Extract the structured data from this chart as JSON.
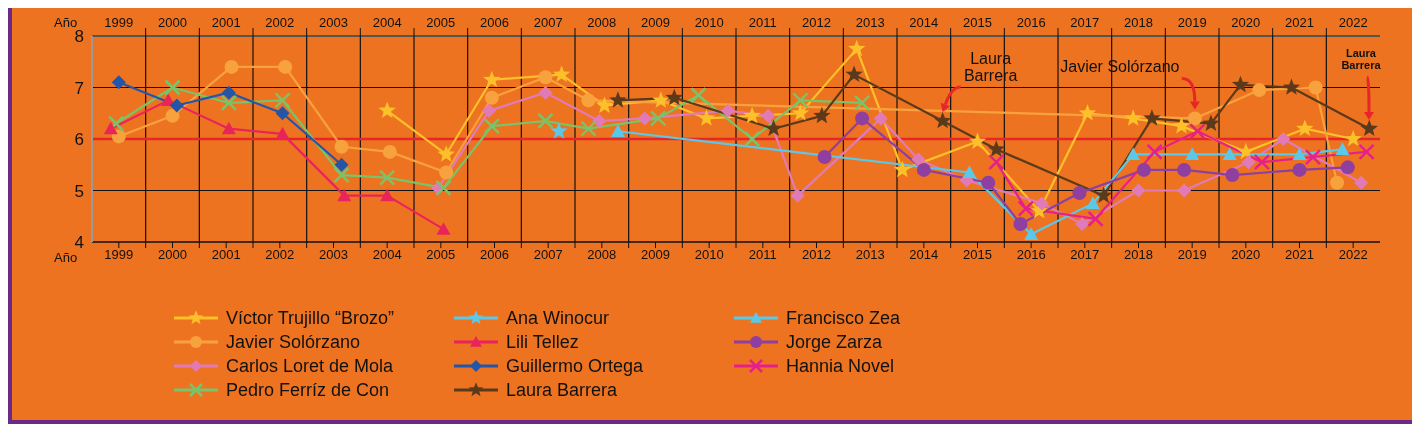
{
  "chart_data": {
    "type": "line",
    "xlabel": "Año",
    "x2label": "Año",
    "xlim": [
      1998.5,
      2022.5
    ],
    "x2lim": [
      1998.5,
      2022.5
    ],
    "xticks": [
      1999,
      {
        "value": 1999.5,
        "label": null
      },
      2000,
      {
        "value": 2000.5,
        "label": null
      },
      2001,
      {
        "value": 2001.5,
        "label": null
      },
      2002,
      {
        "value": 2002.5,
        "label": null
      },
      2003,
      {
        "value": 2003.5,
        "label": null
      },
      2004,
      {
        "value": 2004.5,
        "label": null
      },
      2005,
      {
        "value": 2005.5,
        "label": null
      },
      2006,
      {
        "value": 2006.5,
        "label": null
      },
      2007,
      {
        "value": 2007.5,
        "label": null
      },
      2008,
      {
        "value": 2008.5,
        "label": null
      },
      2009,
      {
        "value": 2009.5,
        "label": null
      },
      2010,
      {
        "value": 2010.5,
        "label": null
      },
      2011,
      {
        "value": 2011.5,
        "label": null
      },
      2012,
      {
        "value": 2012.5,
        "label": null
      },
      2013,
      {
        "value": 2013.5,
        "label": null
      },
      2014,
      {
        "value": 2014.5,
        "label": null
      },
      2015,
      {
        "value": 2015.5,
        "label": null
      },
      2016,
      {
        "value": 2016.5,
        "label": null
      },
      2017,
      {
        "value": 2017.5,
        "label": null
      },
      2018,
      {
        "value": 2018.5,
        "label": null
      },
      2019,
      {
        "value": 2019.5,
        "label": null
      },
      2020,
      {
        "value": 2020.5,
        "label": null
      },
      2021,
      {
        "value": 2021.5,
        "label": null
      },
      2022
    ],
    "x2ticks": [
      1999,
      {
        "value": 1999.5,
        "label": null
      },
      2000,
      {
        "value": 2000.5,
        "label": null
      },
      2001,
      {
        "value": 2001.5,
        "label": null
      },
      2002,
      {
        "value": 2002.5,
        "label": null
      },
      2003,
      {
        "value": 2003.5,
        "label": null
      },
      2004,
      {
        "value": 2004.5,
        "label": null
      },
      2005,
      {
        "value": 2005.5,
        "label": null
      },
      2006,
      {
        "value": 2006.5,
        "label": null
      },
      2007,
      {
        "value": 2007.5,
        "label": null
      },
      2008,
      {
        "value": 2008.5,
        "label": null
      },
      2009,
      {
        "value": 2009.5,
        "label": null
      },
      2010,
      {
        "value": 2010.5,
        "label": null
      },
      2011,
      {
        "value": 2011.5,
        "label": null
      },
      2012,
      {
        "value": 2012.5,
        "label": null
      },
      2013,
      {
        "value": 2013.5,
        "label": null
      },
      2014,
      {
        "value": 2014.5,
        "label": null
      },
      2015,
      {
        "value": 2015.5,
        "label": null
      },
      2016,
      {
        "value": 2016.5,
        "label": null
      },
      2017,
      {
        "value": 2017.5,
        "label": null
      },
      2018,
      {
        "value": 2018.5,
        "label": null
      },
      2019,
      {
        "value": 2019.5,
        "label": null
      },
      2020,
      {
        "value": 2020.5,
        "label": null
      },
      2021,
      {
        "value": 2021.5,
        "label": null
      },
      2022
    ],
    "ylim": [
      4,
      8
    ],
    "yticks": [
      4,
      5,
      6,
      7,
      8
    ],
    "grid": true,
    "legend": "bottom",
    "ref_lines": [
      {
        "axis": "y",
        "value": 6,
        "color": "#e8262a"
      }
    ],
    "annotations": [
      {
        "text": "Laura Barrera",
        "x": 2014.35,
        "y": 6.35
      },
      {
        "text": "Javier Solórzano",
        "x": 2019.05,
        "y": 6.4
      },
      "Laura Barrera"
    ],
    "series": [
      {
        "name": "Víctor Trujillo “Brozo”",
        "color": "#fcc02a",
        "marker": "star",
        "x": [
          2004.0,
          2005.1,
          2005.95,
          2007.25,
          2008.05,
          2009.1,
          2009.95,
          2010.8,
          2011.7,
          2012.75,
          2013.6,
          2015.0,
          2016.15,
          2017.05,
          2017.9,
          2018.8,
          2020.0,
          2021.1,
          2022.0
        ],
        "values": [
          6.55,
          5.7,
          7.15,
          7.25,
          6.65,
          6.75,
          6.4,
          6.45,
          6.5,
          7.75,
          5.4,
          5.95,
          4.6,
          6.5,
          6.4,
          6.25,
          5.75,
          6.2,
          6.0
        ]
      },
      {
        "name": "Javier Solórzano",
        "color": "#f8a23e",
        "marker": "circle",
        "x": [
          1999.0,
          2000.0,
          2001.1,
          2002.1,
          2003.15,
          2004.05,
          2005.1,
          2005.95,
          2006.95,
          2007.75,
          2019.05,
          2020.25,
          2021.3,
          2021.7
        ],
        "values": [
          6.05,
          6.45,
          7.4,
          7.4,
          5.85,
          5.75,
          5.35,
          6.8,
          7.2,
          6.75,
          6.4,
          6.95,
          7.0,
          5.15
        ]
      },
      {
        "name": "Carlos Loret de Mola",
        "color": "#e07bb8",
        "marker": "diamond",
        "x": [
          2004.95,
          2005.9,
          2006.95,
          2007.95,
          2008.8,
          2010.35,
          2011.1,
          2011.65,
          2013.2,
          2013.9,
          2014.8,
          2016.2,
          2016.95,
          2018.0,
          2018.85,
          2020.05,
          2020.7,
          2022.15
        ],
        "values": [
          5.05,
          6.55,
          6.9,
          6.35,
          6.4,
          6.55,
          6.45,
          4.9,
          6.4,
          5.6,
          5.2,
          4.75,
          4.35,
          5.0,
          5.0,
          5.55,
          6.0,
          5.15
        ]
      },
      {
        "name": "Pedro Ferríz de Con",
        "color": "#7ac36a",
        "marker": "cross",
        "x": [
          1998.95,
          2000.0,
          2001.05,
          2002.05,
          2003.15,
          2004.0,
          2005.05,
          2005.95,
          2006.95,
          2007.75,
          2009.05,
          2009.8,
          2010.8,
          2011.7,
          2012.85
        ],
        "values": [
          6.3,
          7.0,
          6.7,
          6.75,
          5.3,
          5.25,
          5.05,
          6.25,
          6.35,
          6.2,
          6.4,
          6.85,
          6.0,
          6.75,
          6.7
        ]
      },
      {
        "name": "Ana Winocur",
        "color": "#5cc8e8",
        "marker": "star",
        "x": [
          2007.2
        ],
        "values": [
          6.15
        ]
      },
      {
        "name": "Lili Tellez",
        "color": "#e8245a",
        "marker": "triangle",
        "x": [
          1998.85,
          1999.92,
          2001.05,
          2002.05,
          2003.2,
          2004.0,
          2005.05
        ],
        "values": [
          6.2,
          6.75,
          6.2,
          6.1,
          4.9,
          4.9,
          4.25
        ]
      },
      {
        "name": "Guillermo Ortega",
        "color": "#2356a8",
        "marker": "diamond",
        "x": [
          1999.0,
          2000.08,
          2001.05,
          2002.05,
          2003.15
        ],
        "values": [
          7.1,
          6.65,
          6.9,
          6.5,
          5.5
        ]
      },
      {
        "name": "Laura Barrera",
        "color": "#5a3a1a",
        "marker": "star",
        "x": [
          2008.3,
          2009.35,
          2011.2,
          2012.1,
          2012.7,
          2014.35,
          2015.35,
          2017.35,
          2018.25,
          2019.35,
          2019.9,
          2020.85,
          2022.3
        ],
        "values": [
          6.75,
          6.8,
          6.2,
          6.45,
          7.25,
          6.35,
          5.8,
          4.9,
          6.4,
          6.3,
          7.05,
          7.0,
          6.2
        ]
      },
      {
        "name": "Francisco Zea",
        "color": "#5cc8e8",
        "marker": "triangle",
        "x": [
          2008.3,
          2014.85,
          2016.0,
          2017.15,
          2017.9,
          2019.0,
          2019.7,
          2021.0,
          2021.8
        ],
        "values": [
          6.15,
          5.35,
          4.15,
          4.75,
          5.7,
          5.7,
          5.7,
          5.7,
          5.8
        ]
      },
      {
        "name": "Jorge Zarza",
        "color": "#8e3fa0",
        "marker": "circle",
        "x": [
          2012.15,
          2012.85,
          2014.0,
          2015.2,
          2015.8,
          2016.9,
          2018.1,
          2018.85,
          2019.75,
          2021.0,
          2021.9
        ],
        "values": [
          5.65,
          6.4,
          5.4,
          5.15,
          4.35,
          4.95,
          5.4,
          5.4,
          5.3,
          5.4,
          5.45
        ]
      },
      {
        "name": "Hannia Novel",
        "color": "#e6208a",
        "marker": "cross",
        "x": [
          2015.35,
          2015.9,
          2017.2,
          2018.3,
          2019.1,
          2020.3,
          2021.25,
          2022.25
        ],
        "values": [
          5.55,
          4.65,
          4.45,
          5.75,
          6.15,
          5.55,
          5.65,
          5.75
        ]
      }
    ]
  }
}
